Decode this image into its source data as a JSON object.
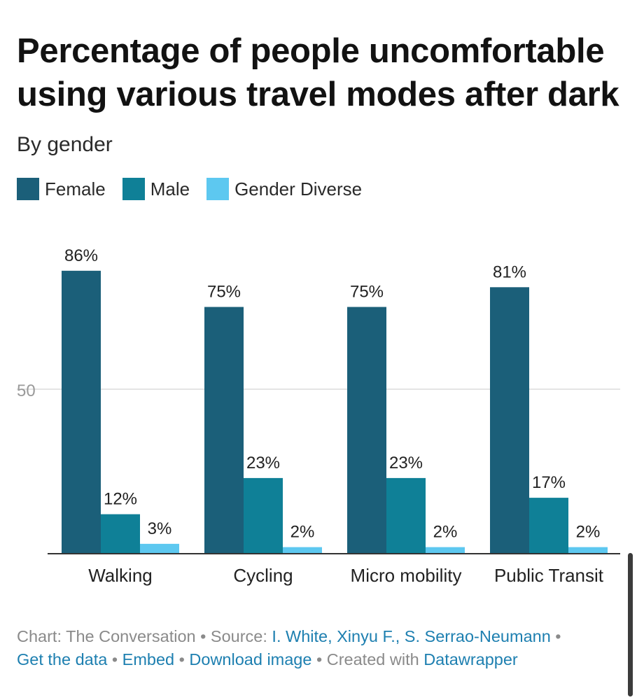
{
  "header": {
    "title": "Percentage of people uncomfortable using various travel modes after dark",
    "subtitle": "By gender"
  },
  "legend": [
    {
      "label": "Female",
      "color": "#1b5f79"
    },
    {
      "label": "Male",
      "color": "#0f8097"
    },
    {
      "label": "Gender Diverse",
      "color": "#5dc8f0"
    }
  ],
  "chart_data": {
    "type": "bar",
    "title": "Percentage of people uncomfortable using various travel modes after dark",
    "subtitle": "By gender",
    "categories": [
      "Walking",
      "Cycling",
      "Micro mobility",
      "Public Transit"
    ],
    "series": [
      {
        "name": "Female",
        "values": [
          86,
          75,
          75,
          81
        ],
        "labels": [
          "86%",
          "75%",
          "75%",
          "81%"
        ]
      },
      {
        "name": "Male",
        "values": [
          12,
          23,
          23,
          17
        ],
        "labels": [
          "12%",
          "23%",
          "23%",
          "17%"
        ]
      },
      {
        "name": "Gender Diverse",
        "values": [
          3,
          2,
          2,
          2
        ],
        "labels": [
          "3%",
          "2%",
          "2%",
          "2%"
        ]
      }
    ],
    "yticks": [
      50
    ],
    "ylim": [
      0,
      100
    ],
    "xlabel": "",
    "ylabel": "",
    "grid": true,
    "legend_position": "top-left"
  },
  "footer": {
    "chart_label": "Chart: The Conversation",
    "sep1": " • ",
    "source_label": "Source: ",
    "source_link": "I. White, Xinyu F., S. Serrao-Neumann",
    "sep2": " • ",
    "get_data": "Get the data",
    "sep3": " • ",
    "embed": "Embed",
    "sep4": "  • ",
    "download": "Download image",
    "sep5": " • ",
    "created_with": "Created with ",
    "datawrapper": "Datawrapper"
  }
}
